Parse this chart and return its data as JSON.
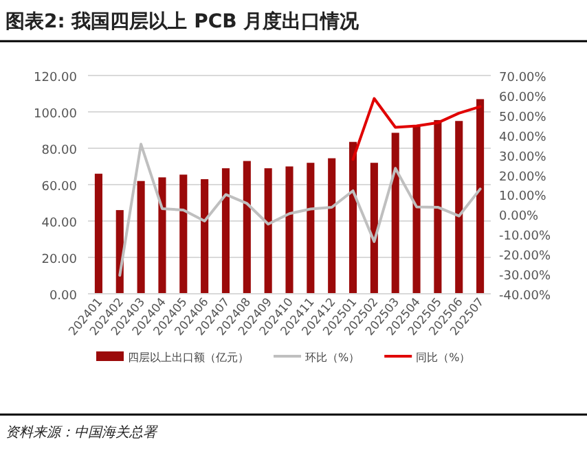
{
  "chart_data": {
    "type": "bar",
    "title": "图表2:  我国四层以上 PCB 月度出口情况",
    "categories": [
      "202401",
      "202402",
      "202403",
      "202404",
      "202405",
      "202406",
      "202407",
      "202408",
      "202409",
      "202410",
      "202411",
      "202412",
      "202501",
      "202502",
      "202503",
      "202504",
      "202505",
      "202506",
      "202507"
    ],
    "series": [
      {
        "name": "四层以上出口额（亿元）",
        "color": "#9b0a0a",
        "values": [
          66,
          46,
          62,
          64,
          65.5,
          63,
          69,
          73,
          69,
          70,
          72,
          74.5,
          83.5,
          72,
          88.5,
          92,
          95.5,
          95,
          107
        ]
      },
      {
        "name": "环比（%）",
        "type": "line",
        "axis": "y2",
        "color": "#bfbfbf",
        "values": [
          null,
          -30.7,
          35.4,
          2.9,
          2.2,
          -3.3,
          10,
          5.5,
          -4.9,
          0.4,
          2.7,
          3.6,
          11.9,
          -13.7,
          23.2,
          3.8,
          3.6,
          -0.8,
          12.8
        ]
      },
      {
        "name": "同比（%）",
        "type": "line",
        "axis": "y2",
        "color": "#e00000",
        "values": [
          null,
          null,
          null,
          null,
          null,
          null,
          null,
          null,
          null,
          null,
          null,
          null,
          27.7,
          58.4,
          43.9,
          44.6,
          46.2,
          51,
          54.3
        ]
      }
    ],
    "ylim": [
      0,
      120
    ],
    "yticks": [
      {
        "value": 0,
        "label": "0.00"
      },
      {
        "value": 20,
        "label": "20.00"
      },
      {
        "value": 40,
        "label": "40.00"
      },
      {
        "value": 60,
        "label": "60.00"
      },
      {
        "value": 80,
        "label": "80.00"
      },
      {
        "value": 100,
        "label": "100.00"
      },
      {
        "value": 120,
        "label": "120.00"
      }
    ],
    "y2lim": [
      -40,
      70
    ],
    "y2ticks": [
      {
        "value": -40,
        "label": "-40.00%"
      },
      {
        "value": -30,
        "label": "-30.00%"
      },
      {
        "value": -20,
        "label": "-20.00%"
      },
      {
        "value": -10,
        "label": "-10.00%"
      },
      {
        "value": 0,
        "label": "0.00%"
      },
      {
        "value": 10,
        "label": "10.00%"
      },
      {
        "value": 20,
        "label": "20.00%"
      },
      {
        "value": 30,
        "label": "30.00%"
      },
      {
        "value": 40,
        "label": "40.00%"
      },
      {
        "value": 50,
        "label": "50.00%"
      },
      {
        "value": 60,
        "label": "60.00%"
      },
      {
        "value": 70,
        "label": "70.00%"
      }
    ],
    "grid": "y",
    "legend": "bottom",
    "annotations": [
      "资料来源：中国海关总署"
    ]
  }
}
